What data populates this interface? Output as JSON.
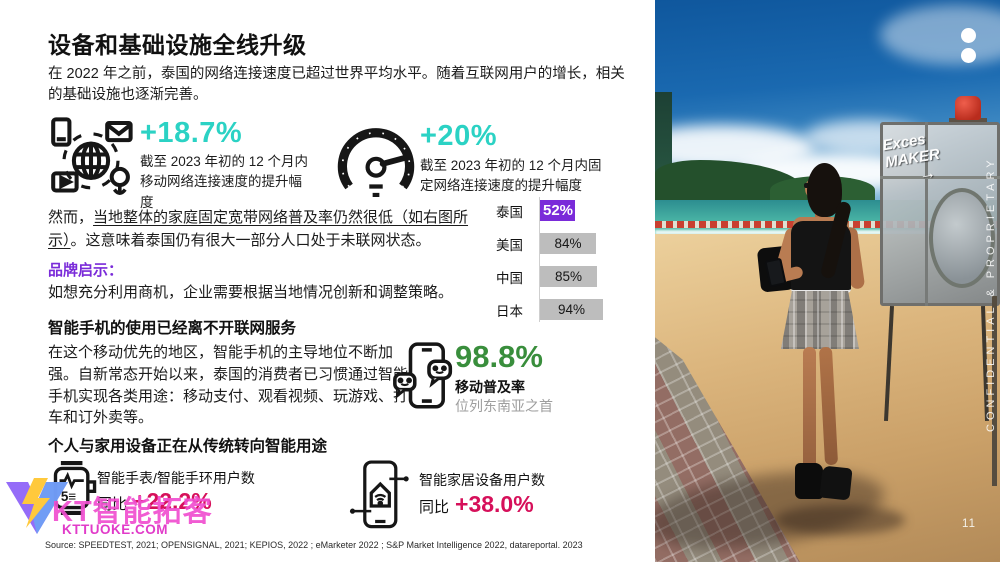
{
  "colors": {
    "teal": "#2BD2C4",
    "purple": "#7A2BD9",
    "green": "#398E3C",
    "crimson": "#D6105A",
    "gray_bar": "#BDBDBD",
    "watermark_pink": "#F04FD0"
  },
  "header": {
    "title": "设备和基础设施全线升级",
    "intro": "在 2022 年之前，泰国的网络连接速度已超过世界平均水平。随着互联网用户的增长，相关的基础设施也逐渐完善。"
  },
  "speed_stats": [
    {
      "value": "+18.7%",
      "caption": "截至 2023 年初的 12 个月内移动网络连接速度的提升幅度"
    },
    {
      "value": "+20%",
      "caption": "截至 2023 年初的 12 个月内固定网络连接速度的提升幅度"
    }
  ],
  "broadband": {
    "prefix": "然而，",
    "underlined": "当地整体的家庭固定宽带网络普及率仍然很低（如右图所示）",
    "suffix": "。这意味着泰国仍有很大一部分人口处于未联网状态。"
  },
  "brand_insight": {
    "label": "品牌启示：",
    "text": "如想充分利用商机，企业需要根据当地情况创新和调整策略。"
  },
  "chart_data": {
    "type": "bar",
    "orientation": "horizontal",
    "categories": [
      "泰国",
      "美国",
      "中国",
      "日本"
    ],
    "values": [
      52,
      84,
      85,
      94
    ],
    "value_labels": [
      "52%",
      "84%",
      "85%",
      "94%"
    ],
    "highlight_index": 0,
    "highlight_color": "#7A2BD9",
    "bar_color": "#BDBDBD",
    "xlim": [
      0,
      100
    ],
    "title": "",
    "legend": "none",
    "grid": "off"
  },
  "smartphone_section": {
    "heading": "智能手机的使用已经离不开联网服务",
    "body": "在这个移动优先的地区，智能手机的主导地位不断加强。自新常态开始以来，泰国的消费者已习惯通过智能手机实现各类用途：移动支付、观看视频、玩游戏、打车和订外卖等。",
    "stat_value": "98.8%",
    "stat_label": "移动普及率",
    "stat_sublabel": "位列东南亚之首"
  },
  "devices_section": {
    "heading": "个人与家用设备正在从传统转向智能用途",
    "stats": [
      {
        "label": "智能手表/智能手环用户数",
        "prefix": "同比",
        "value": "+22.2%"
      },
      {
        "label": "智能家居设备用户数",
        "prefix": "同比",
        "value": "+38.0%"
      }
    ]
  },
  "watermark": {
    "name": "KT智能拓客",
    "url": "KTTUOKE.COM"
  },
  "source": "Source: SPEEDTEST, 2021; OPENSIGNAL, 2021; KEPIOS, 2022 ; eMarketer 2022 ; S&P Market Intelligence 2022, datareportal. 2023",
  "photo": {
    "confidential_text": "CONFIDENTIAL & PROPRIETARY",
    "page_number": "11",
    "graffiti_line1": "Exces",
    "graffiti_line2": "MAKER",
    "graffiti_arrow": "→"
  }
}
